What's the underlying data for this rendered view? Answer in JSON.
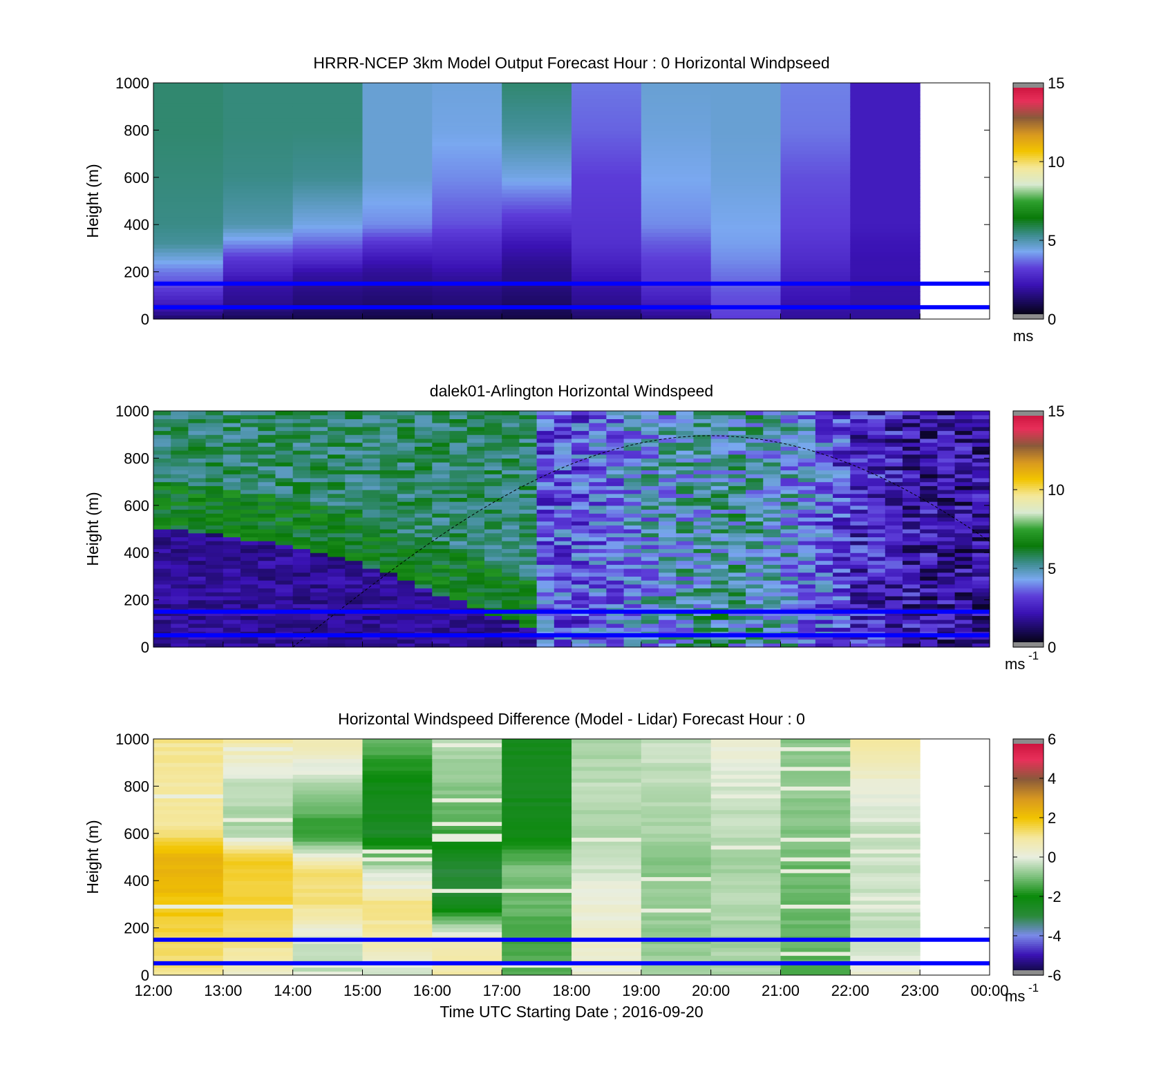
{
  "figure": {
    "xlabel": "Time UTC  Starting Date ; 2016-09-20",
    "x_tick_labels": [
      "12:00",
      "13:00",
      "14:00",
      "15:00",
      "16:00",
      "17:00",
      "18:00",
      "19:00",
      "20:00",
      "21:00",
      "22:00",
      "23:00",
      "00:00"
    ]
  },
  "colormaps": {
    "speed": [
      "#000000",
      "#1a0a5c",
      "#3a12b4",
      "#5c3cd8",
      "#7aa8f0",
      "#3c8c8c",
      "#0a7a0a",
      "#2ea02e",
      "#d8ead0",
      "#f4e89a",
      "#f2c400",
      "#d89820",
      "#8a5a3a",
      "#e8305a",
      "#c8103a"
    ],
    "diff": [
      "#0a0830",
      "#3a12b4",
      "#7a8ae8",
      "#2a8a3a",
      "#0a8a0a",
      "#7cc07c",
      "#e8eee0",
      "#f4e8a0",
      "#f2c400",
      "#d89820",
      "#8a5a3a",
      "#e8305a",
      "#c8103a"
    ]
  },
  "chart_data": [
    {
      "type": "heatmap",
      "title": "HRRR-NCEP 3km Model Output   Forecast Hour : 0 Horizontal Windpseed",
      "ylabel": "Height (m)",
      "y_ticks": [
        "0",
        "200",
        "400",
        "600",
        "800",
        "1000"
      ],
      "ylim": [
        0,
        1000
      ],
      "x_start_hour": 12,
      "x_end_hour": 24,
      "data_hours": 11,
      "colorbar": {
        "ticks": [
          "0",
          "5",
          "10",
          "15"
        ],
        "unit": "ms",
        "unit_sup": "",
        "range": [
          0,
          15
        ],
        "colormap": "speed"
      },
      "hlines": [
        50,
        150
      ],
      "hourly_profiles": [
        {
          "hour": "12:00",
          "levels": [
            [
              0,
              1.2
            ],
            [
              50,
              2.2
            ],
            [
              100,
              2.8
            ],
            [
              150,
              3.4
            ],
            [
              200,
              3.8
            ],
            [
              250,
              4.4
            ],
            [
              320,
              5.2
            ],
            [
              400,
              5.4
            ],
            [
              600,
              5.5
            ],
            [
              800,
              5.6
            ],
            [
              1000,
              5.6
            ]
          ]
        },
        {
          "hour": "13:00",
          "levels": [
            [
              0,
              1.0
            ],
            [
              50,
              1.6
            ],
            [
              100,
              1.8
            ],
            [
              150,
              2.0
            ],
            [
              200,
              2.6
            ],
            [
              250,
              3.0
            ],
            [
              320,
              4.0
            ],
            [
              400,
              5.0
            ],
            [
              600,
              5.4
            ],
            [
              800,
              5.5
            ],
            [
              1000,
              5.5
            ]
          ]
        },
        {
          "hour": "14:00",
          "levels": [
            [
              0,
              0.9
            ],
            [
              50,
              1.3
            ],
            [
              100,
              1.5
            ],
            [
              150,
              1.7
            ],
            [
              200,
              2.0
            ],
            [
              250,
              2.8
            ],
            [
              320,
              3.6
            ],
            [
              400,
              4.4
            ],
            [
              600,
              5.3
            ],
            [
              800,
              5.5
            ],
            [
              1000,
              5.5
            ]
          ]
        },
        {
          "hour": "15:00",
          "levels": [
            [
              0,
              0.8
            ],
            [
              50,
              1.2
            ],
            [
              100,
              1.4
            ],
            [
              150,
              1.6
            ],
            [
              200,
              1.8
            ],
            [
              250,
              2.2
            ],
            [
              320,
              3.0
            ],
            [
              400,
              4.0
            ],
            [
              600,
              4.6
            ],
            [
              800,
              4.6
            ],
            [
              1000,
              4.6
            ]
          ]
        },
        {
          "hour": "16:00",
          "levels": [
            [
              0,
              0.9
            ],
            [
              50,
              1.3
            ],
            [
              100,
              1.5
            ],
            [
              150,
              1.7
            ],
            [
              200,
              2.0
            ],
            [
              250,
              2.4
            ],
            [
              320,
              2.8
            ],
            [
              400,
              3.4
            ],
            [
              600,
              4.0
            ],
            [
              800,
              4.4
            ],
            [
              1000,
              4.5
            ]
          ]
        },
        {
          "hour": "17:00",
          "levels": [
            [
              0,
              0.8
            ],
            [
              50,
              1.1
            ],
            [
              100,
              1.3
            ],
            [
              150,
              1.5
            ],
            [
              200,
              1.6
            ],
            [
              250,
              1.8
            ],
            [
              320,
              2.2
            ],
            [
              400,
              2.9
            ],
            [
              600,
              4.4
            ],
            [
              800,
              5.2
            ],
            [
              1000,
              5.6
            ]
          ]
        },
        {
          "hour": "18:00",
          "levels": [
            [
              0,
              1.2
            ],
            [
              50,
              1.6
            ],
            [
              100,
              1.8
            ],
            [
              150,
              2.0
            ],
            [
              200,
              2.3
            ],
            [
              250,
              2.6
            ],
            [
              320,
              2.9
            ],
            [
              400,
              3.0
            ],
            [
              600,
              3.2
            ],
            [
              800,
              3.6
            ],
            [
              1000,
              3.8
            ]
          ]
        },
        {
          "hour": "19:00",
          "levels": [
            [
              0,
              1.6
            ],
            [
              50,
              2.2
            ],
            [
              100,
              2.6
            ],
            [
              150,
              2.9
            ],
            [
              200,
              3.0
            ],
            [
              250,
              3.2
            ],
            [
              320,
              3.5
            ],
            [
              400,
              4.0
            ],
            [
              600,
              4.3
            ],
            [
              800,
              4.5
            ],
            [
              1000,
              4.6
            ]
          ]
        },
        {
          "hour": "20:00",
          "levels": [
            [
              0,
              3.2
            ],
            [
              50,
              3.3
            ],
            [
              100,
              3.4
            ],
            [
              150,
              3.6
            ],
            [
              200,
              3.8
            ],
            [
              250,
              4.0
            ],
            [
              320,
              4.2
            ],
            [
              400,
              4.3
            ],
            [
              600,
              4.5
            ],
            [
              800,
              4.6
            ],
            [
              1000,
              4.6
            ]
          ]
        },
        {
          "hour": "21:00",
          "levels": [
            [
              0,
              1.8
            ],
            [
              50,
              2.0
            ],
            [
              100,
              2.2
            ],
            [
              150,
              2.4
            ],
            [
              200,
              2.6
            ],
            [
              250,
              2.8
            ],
            [
              320,
              3.0
            ],
            [
              400,
              3.2
            ],
            [
              600,
              3.4
            ],
            [
              800,
              3.8
            ],
            [
              1000,
              3.9
            ]
          ]
        },
        {
          "hour": "22:00",
          "levels": [
            [
              0,
              1.8
            ],
            [
              50,
              1.9
            ],
            [
              100,
              2.0
            ],
            [
              150,
              2.0
            ],
            [
              200,
              2.1
            ],
            [
              250,
              2.1
            ],
            [
              320,
              2.2
            ],
            [
              400,
              2.4
            ],
            [
              600,
              2.4
            ],
            [
              800,
              2.4
            ],
            [
              1000,
              2.4
            ]
          ]
        }
      ]
    },
    {
      "type": "heatmap",
      "title": "dalek01-Arlington  Horizontal Windspeed",
      "ylabel": "Height (m)",
      "y_ticks": [
        "0",
        "200",
        "400",
        "600",
        "800",
        "1000"
      ],
      "ylim": [
        0,
        1000
      ],
      "x_start_hour": 12,
      "x_end_hour": 24,
      "data_hours": 11.9,
      "colorbar": {
        "ticks": [
          "0",
          "5",
          "10",
          "15"
        ],
        "unit": "ms",
        "unit_sup": "-1",
        "range": [
          0,
          15
        ],
        "colormap": "speed"
      },
      "hlines": [
        50,
        150
      ],
      "dashed_curve": {
        "start_hour": 14,
        "peak_hour": 20,
        "peak_height": 895,
        "end_hour": 24,
        "end_height": 440
      },
      "profiles_every_hours": 0.25,
      "boundary_layer_top": [
        [
          12,
          500
        ],
        [
          13,
          480
        ],
        [
          14,
          420
        ],
        [
          15,
          350
        ],
        [
          16,
          240
        ],
        [
          17,
          120
        ],
        [
          18,
          40
        ],
        [
          24,
          40
        ]
      ],
      "speed_below_boundary": 1.8,
      "speed_above_boundary": 5.6,
      "late_speed_after": [
        [
          18,
          3.4
        ],
        [
          19,
          4.5
        ],
        [
          20,
          5.0
        ],
        [
          21,
          4.5
        ],
        [
          22,
          2.6
        ],
        [
          23,
          2.0
        ],
        [
          24,
          1.8
        ]
      ]
    },
    {
      "type": "heatmap",
      "title": "Horizontal Windspeed Difference (Model - Lidar) Forecast Hour : 0",
      "ylabel": "Height (m)",
      "y_ticks": [
        "0",
        "200",
        "400",
        "600",
        "800",
        "1000"
      ],
      "ylim": [
        0,
        1000
      ],
      "x_start_hour": 12,
      "x_end_hour": 24,
      "data_hours": 11,
      "colorbar": {
        "ticks": [
          "-6",
          "-4",
          "-2",
          "0",
          "2",
          "4",
          "6"
        ],
        "unit": "ms",
        "unit_sup": "-1",
        "range": [
          -6,
          6
        ],
        "colormap": "diff"
      },
      "hlines": [
        50,
        150
      ],
      "hourly_profiles": [
        {
          "hour": "12:00",
          "levels": [
            [
              0,
              1.2
            ],
            [
              150,
              1.5
            ],
            [
              300,
              2.0
            ],
            [
              500,
              2.5
            ],
            [
              600,
              1.2
            ],
            [
              800,
              0.9
            ],
            [
              1000,
              1.1
            ]
          ]
        },
        {
          "hour": "13:00",
          "levels": [
            [
              0,
              0.4
            ],
            [
              150,
              1.2
            ],
            [
              300,
              1.6
            ],
            [
              500,
              1.8
            ],
            [
              600,
              -0.6
            ],
            [
              800,
              -0.4
            ],
            [
              1000,
              0.9
            ]
          ]
        },
        {
          "hour": "14:00",
          "levels": [
            [
              0,
              -0.4
            ],
            [
              150,
              -0.2
            ],
            [
              300,
              1.2
            ],
            [
              450,
              1.3
            ],
            [
              600,
              -1.8
            ],
            [
              800,
              -0.6
            ],
            [
              1000,
              0.8
            ]
          ]
        },
        {
          "hour": "15:00",
          "levels": [
            [
              0,
              -0.3
            ],
            [
              150,
              0.8
            ],
            [
              300,
              1.2
            ],
            [
              450,
              -0.4
            ],
            [
              600,
              -2.6
            ],
            [
              800,
              -2.2
            ],
            [
              1000,
              -1.2
            ]
          ]
        },
        {
          "hour": "16:00",
          "levels": [
            [
              0,
              0.9
            ],
            [
              150,
              0.6
            ],
            [
              300,
              -2.6
            ],
            [
              450,
              -2.9
            ],
            [
              600,
              -1.6
            ],
            [
              800,
              -0.8
            ],
            [
              1000,
              -0.4
            ]
          ]
        },
        {
          "hour": "17:00",
          "levels": [
            [
              0,
              -1.4
            ],
            [
              150,
              -1.5
            ],
            [
              300,
              -1.2
            ],
            [
              450,
              -1.0
            ],
            [
              600,
              -2.3
            ],
            [
              800,
              -2.4
            ],
            [
              1000,
              -2.3
            ]
          ]
        },
        {
          "hour": "18:00",
          "levels": [
            [
              0,
              0.3
            ],
            [
              150,
              0.3
            ],
            [
              300,
              0.2
            ],
            [
              450,
              -0.2
            ],
            [
              600,
              -0.5
            ],
            [
              800,
              -0.4
            ],
            [
              1000,
              -0.6
            ]
          ]
        },
        {
          "hour": "19:00",
          "levels": [
            [
              0,
              -0.6
            ],
            [
              150,
              -0.8
            ],
            [
              300,
              -0.7
            ],
            [
              450,
              -0.9
            ],
            [
              600,
              -0.6
            ],
            [
              800,
              -0.4
            ],
            [
              1000,
              -0.3
            ]
          ]
        },
        {
          "hour": "20:00",
          "levels": [
            [
              0,
              -0.5
            ],
            [
              150,
              -0.6
            ],
            [
              300,
              -0.5
            ],
            [
              450,
              -0.6
            ],
            [
              600,
              -0.4
            ],
            [
              800,
              -0.2
            ],
            [
              1000,
              0.4
            ]
          ]
        },
        {
          "hour": "21:00",
          "levels": [
            [
              0,
              -1.4
            ],
            [
              150,
              -1.2
            ],
            [
              300,
              -1.1
            ],
            [
              450,
              -1.2
            ],
            [
              600,
              -0.9
            ],
            [
              800,
              -0.8
            ],
            [
              1000,
              -0.9
            ]
          ]
        },
        {
          "hour": "22:00",
          "levels": [
            [
              0,
              0.3
            ],
            [
              150,
              -0.3
            ],
            [
              300,
              -0.3
            ],
            [
              450,
              -0.2
            ],
            [
              600,
              -0.3
            ],
            [
              800,
              0.2
            ],
            [
              1000,
              1.0
            ]
          ]
        }
      ]
    }
  ]
}
